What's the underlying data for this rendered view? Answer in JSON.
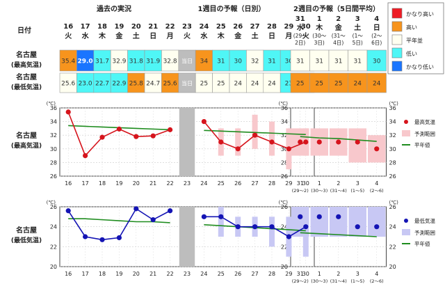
{
  "header": {
    "date_label": "日付",
    "past_label": "過去の実況",
    "week1_label": "1週目の予報（日別）",
    "week2_label": "2週目の予報（5日間平均）",
    "days": [
      {
        "d": "16",
        "w": "火"
      },
      {
        "d": "17",
        "w": "水"
      },
      {
        "d": "18",
        "w": "木"
      },
      {
        "d": "19",
        "w": "金"
      },
      {
        "d": "20",
        "w": "土"
      },
      {
        "d": "21",
        "w": "日"
      },
      {
        "d": "22",
        "w": "月"
      },
      {
        "d": "23",
        "w": "火"
      },
      {
        "d": "24",
        "w": "水"
      },
      {
        "d": "25",
        "w": "木"
      },
      {
        "d": "26",
        "w": "金"
      },
      {
        "d": "27",
        "w": "土"
      },
      {
        "d": "28",
        "w": "日"
      },
      {
        "d": "29",
        "w": "月"
      },
      {
        "d": "30",
        "w": "火"
      }
    ],
    "periods": [
      {
        "d": "31",
        "w": "水",
        "r1": "(29～",
        "r2": "2日)"
      },
      {
        "d": "1",
        "w": "木",
        "r1": "(30～",
        "r2": "3日)"
      },
      {
        "d": "2",
        "w": "金",
        "r1": "(31～",
        "r2": "4日)"
      },
      {
        "d": "3",
        "w": "土",
        "r1": "(1～",
        "r2": "5日)"
      },
      {
        "d": "4",
        "w": "日",
        "r1": "(2～",
        "r2": "6日)"
      }
    ]
  },
  "row_labels": {
    "high": [
      "名古屋",
      "(最高気温)"
    ],
    "low": [
      "名古屋",
      "(最低気温)"
    ]
  },
  "today_label": "当日",
  "table": {
    "high_past": [
      {
        "v": "35.4",
        "c": "orange"
      },
      {
        "v": "29.0",
        "c": "blue"
      },
      {
        "v": "31.7",
        "c": "cyan"
      },
      {
        "v": "32.9",
        "c": "white"
      },
      {
        "v": "31.8",
        "c": "cyan"
      },
      {
        "v": "31.9",
        "c": "cyan"
      },
      {
        "v": "32.8",
        "c": "white"
      }
    ],
    "high_week1": [
      {
        "v": "34",
        "c": "orange"
      },
      {
        "v": "31",
        "c": "cyan"
      },
      {
        "v": "30",
        "c": "cyan"
      },
      {
        "v": "32",
        "c": "white"
      },
      {
        "v": "31",
        "c": "cyan"
      },
      {
        "v": "30",
        "c": "cyan"
      },
      {
        "v": "31",
        "c": "cyan"
      }
    ],
    "high_week2": [
      {
        "v": "31",
        "c": "white"
      },
      {
        "v": "31",
        "c": "white"
      },
      {
        "v": "31",
        "c": "white"
      },
      {
        "v": "31",
        "c": "white"
      },
      {
        "v": "30",
        "c": "cyan"
      }
    ],
    "low_past": [
      {
        "v": "25.6",
        "c": "white"
      },
      {
        "v": "23.0",
        "c": "cyan"
      },
      {
        "v": "22.7",
        "c": "cyan"
      },
      {
        "v": "22.9",
        "c": "cyan"
      },
      {
        "v": "25.8",
        "c": "orange"
      },
      {
        "v": "24.7",
        "c": "white"
      },
      {
        "v": "25.6",
        "c": "orange"
      }
    ],
    "low_week1": [
      {
        "v": "25",
        "c": "white"
      },
      {
        "v": "25",
        "c": "white"
      },
      {
        "v": "24",
        "c": "white"
      },
      {
        "v": "24",
        "c": "white"
      },
      {
        "v": "24",
        "c": "white"
      },
      {
        "v": "23",
        "c": "cyan"
      },
      {
        "v": "24",
        "c": "white"
      }
    ],
    "low_week2": [
      {
        "v": "25",
        "c": "orange"
      },
      {
        "v": "25",
        "c": "orange"
      },
      {
        "v": "25",
        "c": "orange"
      },
      {
        "v": "24",
        "c": "orange"
      },
      {
        "v": "24",
        "c": "orange"
      }
    ]
  },
  "legend_top": [
    {
      "label": "かなり高い",
      "color": "#ee1c25"
    },
    {
      "label": "高い",
      "color": "#f7941d"
    },
    {
      "label": "平年並",
      "color": "#fffff0"
    },
    {
      "label": "低い",
      "color": "#4ff6f6"
    },
    {
      "label": "かなり低い",
      "color": "#1a75ff"
    }
  ],
  "colors": {
    "red": "#ee1c25",
    "orange": "#f7941d",
    "white": "#fffff0",
    "cyan": "#4ff6f6",
    "blue": "#1a75ff",
    "gray": "#bdbdbd",
    "normal": "#1e8c1e",
    "high_line": "#d6141c",
    "low_line": "#1414b4",
    "high_band": "#f8c8cc",
    "low_band": "#c8c8f4"
  },
  "chart_data": [
    {
      "type": "line",
      "title": "",
      "ylabel": "(℃)",
      "ylim": [
        26,
        36
      ],
      "yticks": [
        26,
        28,
        30,
        32,
        34,
        36
      ],
      "x_past": [
        "16",
        "17",
        "18",
        "19",
        "20",
        "21",
        "22"
      ],
      "x_today": "23",
      "x_week1": [
        "24",
        "25",
        "26",
        "27",
        "28",
        "29",
        "30"
      ],
      "x_week2": [
        "31",
        "1",
        "2",
        "3",
        "4"
      ],
      "x_week2_sub": [
        "(29～2)",
        "(30～3)",
        "(31～4)",
        "(1～5)",
        "(2～6)"
      ],
      "series": [
        {
          "name": "最高気温",
          "past": [
            35.4,
            29.0,
            31.7,
            32.9,
            31.8,
            31.9,
            32.8
          ],
          "week1": [
            34,
            31,
            30,
            32,
            31,
            30,
            31
          ],
          "week2": [
            31,
            31,
            31,
            31,
            30
          ]
        },
        {
          "name": "予測範囲",
          "week1": [
            null,
            [
              29,
              33
            ],
            [
              29,
              33
            ],
            [
              30,
              35
            ],
            [
              29,
              34
            ],
            [
              27,
              33
            ],
            [
              29,
              33
            ]
          ],
          "week2": [
            [
              29,
              33
            ],
            [
              29,
              33
            ],
            [
              29,
              33
            ],
            [
              28,
              33
            ],
            [
              28,
              32
            ]
          ]
        },
        {
          "name": "平年値",
          "past": [
            33.4,
            33.3,
            33.2,
            33.1,
            33.0,
            32.9,
            32.8
          ],
          "week1": [
            32.7,
            32.6,
            32.5,
            32.4,
            32.3,
            32.2,
            32.1
          ],
          "week2": [
            31.8,
            31.6,
            31.5,
            31.3,
            31.1
          ]
        }
      ]
    },
    {
      "type": "line",
      "title": "",
      "ylabel": "(℃)",
      "ylim": [
        20,
        26
      ],
      "yticks": [
        20,
        22,
        24,
        26
      ],
      "x_past": [
        "16",
        "17",
        "18",
        "19",
        "20",
        "21",
        "22"
      ],
      "x_today": "23",
      "x_week1": [
        "24",
        "25",
        "26",
        "27",
        "28",
        "29",
        "30"
      ],
      "x_week2": [
        "31",
        "1",
        "2",
        "3",
        "4"
      ],
      "x_week2_sub": [
        "(29～2)",
        "(30～3)",
        "(31～4)",
        "(1～5)",
        "(2～6)"
      ],
      "series": [
        {
          "name": "最低気温",
          "past": [
            25.6,
            23.0,
            22.7,
            22.9,
            25.8,
            24.7,
            25.6
          ],
          "week1": [
            25,
            25,
            24,
            24,
            24,
            23,
            24
          ],
          "week2": [
            25,
            25,
            25,
            24,
            24
          ]
        },
        {
          "name": "予測範囲",
          "week1": [
            null,
            [
              23,
              26
            ],
            [
              23,
              25
            ],
            [
              23,
              25
            ],
            [
              22,
              25
            ],
            [
              21,
              25
            ],
            [
              21,
              25
            ]
          ],
          "week2": [
            [
              23,
              26
            ],
            [
              23,
              26
            ],
            [
              23,
              26
            ],
            [
              23,
              26
            ],
            [
              23,
              26
            ]
          ]
        },
        {
          "name": "平年値",
          "past": [
            24.8,
            24.8,
            24.7,
            24.6,
            24.5,
            24.5,
            24.4
          ],
          "week1": [
            24.2,
            24.1,
            24.0,
            23.9,
            23.8,
            23.7,
            23.6
          ],
          "week2": [
            23.4,
            23.3,
            23.2,
            23.1,
            23.0
          ]
        }
      ]
    }
  ]
}
